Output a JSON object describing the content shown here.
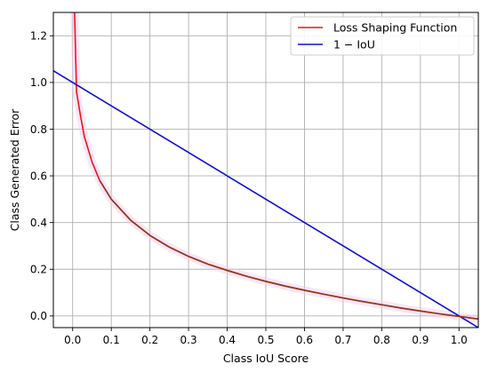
{
  "chart_data": {
    "type": "line",
    "xlabel": "Class IoU Score",
    "ylabel": "Class Generated Error",
    "xlim": [
      -0.05,
      1.05
    ],
    "ylim": [
      -0.05,
      1.3
    ],
    "xticks": [
      0.0,
      0.1,
      0.2,
      0.3,
      0.4,
      0.5,
      0.6,
      0.7,
      0.8,
      0.9,
      1.0
    ],
    "xtick_labels": [
      "0.0",
      "0.1",
      "0.2",
      "0.3",
      "0.4",
      "0.5",
      "0.6",
      "0.7",
      "0.8",
      "0.9",
      "1.0"
    ],
    "yticks": [
      0.0,
      0.2,
      0.4,
      0.6,
      0.8,
      1.0,
      1.2
    ],
    "ytick_labels": [
      "0.0",
      "0.2",
      "0.4",
      "0.6",
      "0.8",
      "1.0",
      "1.2"
    ],
    "grid": true,
    "legend_position": "top-right",
    "series": [
      {
        "name": "Loss Shaping Function",
        "color": "#e8141c",
        "x": [
          0.002,
          0.005,
          0.01,
          0.02,
          0.03,
          0.05,
          0.07,
          0.1,
          0.15,
          0.2,
          0.25,
          0.3,
          0.35,
          0.4,
          0.45,
          0.5,
          0.55,
          0.6,
          0.65,
          0.7,
          0.75,
          0.8,
          0.85,
          0.9,
          0.95,
          1.0,
          1.05
        ],
        "y": [
          1.3,
          1.3,
          0.96,
          0.86,
          0.77,
          0.66,
          0.58,
          0.5,
          0.41,
          0.345,
          0.295,
          0.255,
          0.222,
          0.195,
          0.17,
          0.148,
          0.128,
          0.11,
          0.093,
          0.077,
          0.062,
          0.048,
          0.034,
          0.021,
          0.009,
          -0.002,
          -0.013
        ]
      },
      {
        "name": "1 − IoU",
        "color": "#0b10d6",
        "x": [
          -0.05,
          1.05
        ],
        "y": [
          1.05,
          -0.05
        ]
      }
    ]
  }
}
